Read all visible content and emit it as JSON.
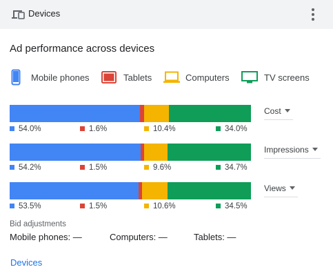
{
  "header": {
    "title": "Devices",
    "icon": "devices-icon",
    "menu_icon": "more-vert-icon"
  },
  "section_title": "Ad performance across devices",
  "legend": [
    {
      "label": "Mobile phones",
      "icon": "mobile-phone-icon",
      "color": "#4285f4"
    },
    {
      "label": "Tablets",
      "icon": "tablet-icon",
      "color": "#db4437"
    },
    {
      "label": "Computers",
      "icon": "computer-icon",
      "color": "#f4b400"
    },
    {
      "label": "TV screens",
      "icon": "tv-screen-icon",
      "color": "#0f9d58"
    }
  ],
  "chart_data": {
    "type": "bar",
    "stacked": true,
    "orientation": "horizontal",
    "series_names": [
      "Mobile phones",
      "Tablets",
      "Computers",
      "TV screens"
    ],
    "colors": [
      "#4285f4",
      "#db4437",
      "#f4b400",
      "#0f9d58"
    ],
    "rows": [
      {
        "metric": "Cost",
        "values": [
          54.0,
          1.6,
          10.4,
          34.0
        ],
        "labels": [
          "54.0%",
          "1.6%",
          "10.4%",
          "34.0%"
        ]
      },
      {
        "metric": "Impressions",
        "values": [
          54.2,
          1.5,
          9.6,
          34.7
        ],
        "labels": [
          "54.2%",
          "1.5%",
          "9.6%",
          "34.7%"
        ]
      },
      {
        "metric": "Views",
        "values": [
          53.5,
          1.5,
          10.6,
          34.5
        ],
        "labels": [
          "53.5%",
          "1.5%",
          "10.6%",
          "34.5%"
        ]
      }
    ]
  },
  "bid": {
    "label": "Bid adjustments",
    "mobile": "Mobile phones: —",
    "computers": "Computers: —",
    "tablets": "Tablets: —"
  },
  "link": "Devices"
}
